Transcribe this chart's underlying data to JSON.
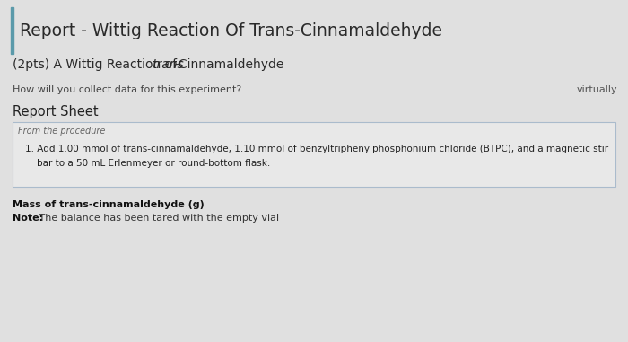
{
  "title": "Report - Wittig Reaction Of Trans-Cinnamaldehyde",
  "bg_color": "#e0e0e0",
  "sidebar_color": "#5b9aaa",
  "subtitle_pre": "(2pts) A Wittig Reaction of ",
  "subtitle_italic": "trans",
  "subtitle_end": "-Cinnamaldehyde",
  "label_virtually": "virtually",
  "question": "How will you collect data for this experiment?",
  "section_header": "Report Sheet",
  "box_label": "From the procedure",
  "box_text_1": "1. Add 1.00 mmol of trans-cinnamaldehyde, 1.10 mmol of benzyltriphenylphosphonium chloride (BTPC), and a magnetic stir",
  "box_text_2": "    bar to a 50 mL Erlenmeyer or round-bottom flask.",
  "bold_line1": "Mass of trans-cinnamaldehyde (g)",
  "note_bold": "Note:",
  "note_text": " The balance has been tared with the empty vial"
}
